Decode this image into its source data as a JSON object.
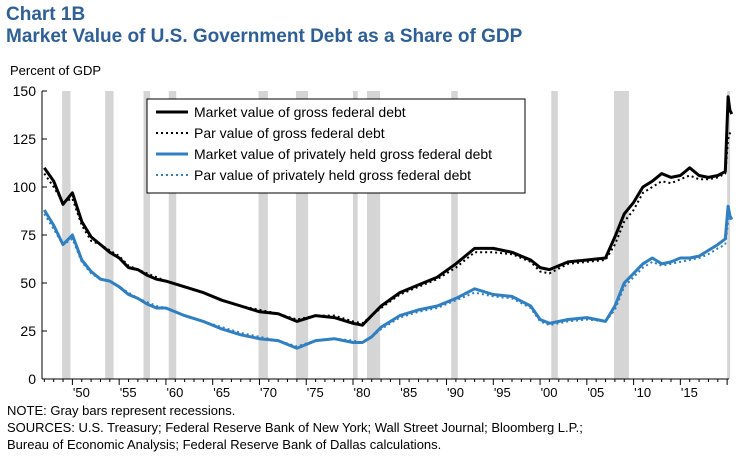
{
  "chart_title": "Chart 1B",
  "chart_subtitle": "Market Value of U.S. Government Debt as a Share of GDP",
  "notes": [
    "NOTE: Gray bars represent recessions.",
    "SOURCES: U.S. Treasury; Federal Reserve Bank of New York; Wall Street Journal; Bloomberg L.P.;",
    "Bureau of Economic Analysis; Federal Reserve Bank of Dallas calculations."
  ],
  "colors": {
    "title": "#2e5f95",
    "black": "#000000",
    "blue": "#2f7fc1",
    "recession": "#d5d5d5"
  },
  "chart_data": {
    "type": "line",
    "title": "Market Value of U.S. Government Debt as a Share of GDP",
    "ylabel": "Percent of GDP",
    "xlabel": "",
    "xlim": [
      1946.75,
      2020.2
    ],
    "ylim": [
      0,
      150
    ],
    "yticks": [
      0,
      25,
      50,
      75,
      100,
      125,
      150
    ],
    "xticks": [
      {
        "year": 1950,
        "label": "'50"
      },
      {
        "year": 1955,
        "label": "'55"
      },
      {
        "year": 1960,
        "label": "'60"
      },
      {
        "year": 1965,
        "label": "'65"
      },
      {
        "year": 1970,
        "label": "'70"
      },
      {
        "year": 1975,
        "label": "'75"
      },
      {
        "year": 1980,
        "label": "'80"
      },
      {
        "year": 1985,
        "label": "'85"
      },
      {
        "year": 1990,
        "label": "'90"
      },
      {
        "year": 1995,
        "label": "'95"
      },
      {
        "year": 2000,
        "label": "'00"
      },
      {
        "year": 2005,
        "label": "'05"
      },
      {
        "year": 2010,
        "label": "'10"
      },
      {
        "year": 2015,
        "label": "'15"
      }
    ],
    "recessions": [
      [
        1948.9,
        1949.8
      ],
      [
        1953.5,
        1954.4
      ],
      [
        1957.6,
        1958.3
      ],
      [
        1960.3,
        1961.1
      ],
      [
        1969.9,
        1970.9
      ],
      [
        1973.9,
        1975.2
      ],
      [
        1980.0,
        1980.5
      ],
      [
        1981.5,
        1982.9
      ],
      [
        1990.5,
        1991.2
      ],
      [
        2001.2,
        2001.9
      ],
      [
        2007.9,
        2009.5
      ],
      [
        2020.0,
        2020.5
      ]
    ],
    "legend_position": "top",
    "series": [
      {
        "name": "Market value of gross federal debt",
        "color": "#000000",
        "dashed": false,
        "x": [
          1947,
          1948,
          1949,
          1950,
          1951,
          1952,
          1953,
          1954,
          1955,
          1956,
          1957,
          1958,
          1959,
          1960,
          1962,
          1964,
          1966,
          1968,
          1970,
          1972,
          1974,
          1976,
          1978,
          1980,
          1981,
          1982,
          1983,
          1985,
          1987,
          1989,
          1991,
          1993,
          1995,
          1997,
          1999,
          2000,
          2001,
          2003,
          2005,
          2007,
          2008,
          2009,
          2010,
          2011,
          2012,
          2013,
          2014,
          2015,
          2016,
          2017,
          2018,
          2019,
          2019.8,
          2020.1,
          2020.3,
          2020.5
        ],
        "y": [
          110,
          103,
          91,
          97,
          82,
          74,
          70,
          66,
          63,
          58,
          57,
          54,
          52,
          51,
          48,
          45,
          41,
          38,
          35,
          34,
          30,
          33,
          32,
          29,
          28,
          33,
          38,
          45,
          49,
          53,
          60,
          68,
          68,
          66,
          62,
          58,
          57,
          61,
          62,
          63,
          74,
          86,
          92,
          100,
          103,
          107,
          105,
          106,
          110,
          106,
          105,
          106,
          108,
          147,
          140,
          138
        ]
      },
      {
        "name": "Par value of gross federal debt",
        "color": "#000000",
        "dashed": true,
        "x": [
          1947,
          1948,
          1949,
          1950,
          1951,
          1952,
          1953,
          1954,
          1955,
          1956,
          1957,
          1958,
          1959,
          1960,
          1962,
          1964,
          1966,
          1968,
          1970,
          1972,
          1974,
          1976,
          1978,
          1980,
          1981,
          1982,
          1983,
          1985,
          1987,
          1989,
          1991,
          1993,
          1995,
          1997,
          1999,
          2000,
          2001,
          2003,
          2005,
          2007,
          2008,
          2009,
          2010,
          2011,
          2012,
          2013,
          2014,
          2015,
          2016,
          2017,
          2018,
          2019,
          2019.8,
          2020.1,
          2020.3,
          2020.5
        ],
        "y": [
          107,
          100,
          92,
          94,
          80,
          72,
          70,
          67,
          64,
          59,
          57,
          55,
          53,
          51,
          48,
          45,
          41,
          38,
          36,
          34,
          31,
          33,
          33,
          30,
          29,
          33,
          37,
          44,
          48,
          52,
          58,
          66,
          66,
          65,
          61,
          56,
          55,
          60,
          61,
          62,
          70,
          82,
          88,
          97,
          100,
          103,
          102,
          104,
          106,
          104,
          104,
          105,
          107,
          125,
          128,
          129
        ]
      },
      {
        "name": "Market value of privately held gross federal debt",
        "color": "#2f7fc1",
        "dashed": false,
        "x": [
          1947,
          1948,
          1949,
          1950,
          1951,
          1952,
          1953,
          1954,
          1955,
          1956,
          1957,
          1958,
          1959,
          1960,
          1962,
          1964,
          1966,
          1968,
          1970,
          1972,
          1974,
          1976,
          1978,
          1980,
          1981,
          1982,
          1983,
          1985,
          1987,
          1989,
          1991,
          1993,
          1995,
          1997,
          1999,
          2000,
          2001,
          2003,
          2005,
          2007,
          2008,
          2009,
          2010,
          2011,
          2012,
          2013,
          2014,
          2015,
          2016,
          2017,
          2018,
          2019,
          2019.8,
          2020.1,
          2020.3,
          2020.5
        ],
        "y": [
          88,
          80,
          70,
          75,
          62,
          56,
          52,
          51,
          48,
          44,
          42,
          39,
          37,
          37,
          33,
          30,
          26,
          23,
          21,
          20,
          16,
          20,
          21,
          19,
          19,
          22,
          27,
          33,
          36,
          38,
          42,
          47,
          44,
          43,
          38,
          31,
          29,
          31,
          32,
          30,
          38,
          50,
          55,
          60,
          63,
          60,
          61,
          63,
          63,
          64,
          67,
          70,
          73,
          90,
          85,
          83
        ]
      },
      {
        "name": "Par value of privately held gross federal debt",
        "color": "#2f7fc1",
        "dashed": true,
        "x": [
          1947,
          1948,
          1949,
          1950,
          1951,
          1952,
          1953,
          1954,
          1955,
          1956,
          1957,
          1958,
          1959,
          1960,
          1962,
          1964,
          1966,
          1968,
          1970,
          1972,
          1974,
          1976,
          1978,
          1980,
          1981,
          1982,
          1983,
          1985,
          1987,
          1989,
          1991,
          1993,
          1995,
          1997,
          1999,
          2000,
          2001,
          2003,
          2005,
          2007,
          2008,
          2009,
          2010,
          2011,
          2012,
          2013,
          2014,
          2015,
          2016,
          2017,
          2018,
          2019,
          2019.8,
          2020.1,
          2020.3,
          2020.5
        ],
        "y": [
          86,
          78,
          70,
          73,
          61,
          55,
          52,
          51,
          48,
          45,
          42,
          40,
          38,
          37,
          33,
          30,
          27,
          24,
          22,
          20,
          17,
          20,
          21,
          20,
          19,
          22,
          26,
          32,
          35,
          37,
          41,
          45,
          43,
          42,
          37,
          30,
          28,
          30,
          31,
          30,
          36,
          48,
          53,
          58,
          61,
          59,
          60,
          61,
          62,
          63,
          65,
          68,
          70,
          82,
          86,
          84
        ]
      }
    ]
  }
}
